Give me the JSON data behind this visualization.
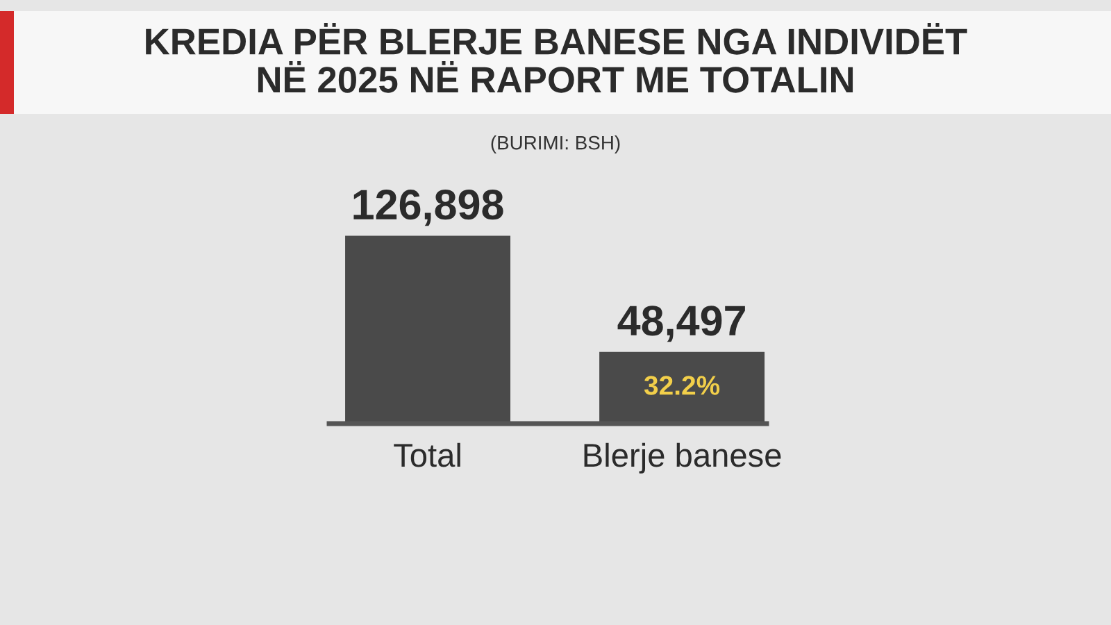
{
  "chart_data": {
    "type": "bar",
    "title": "KREDIA PËR BLERJE BANESE NGA INDIVIDËT\nNË 2025 NË RAPORT ME TOTALIN",
    "categories": [
      "Total",
      "Blerje banese"
    ],
    "values": [
      126898,
      48497
    ],
    "color": "#4a4a4a",
    "value_labels": [
      "126,898",
      "48,497"
    ],
    "annotations": [
      "(BURIMI: BSH)",
      "32.2%"
    ],
    "grid": false,
    "legend": false
  }
}
